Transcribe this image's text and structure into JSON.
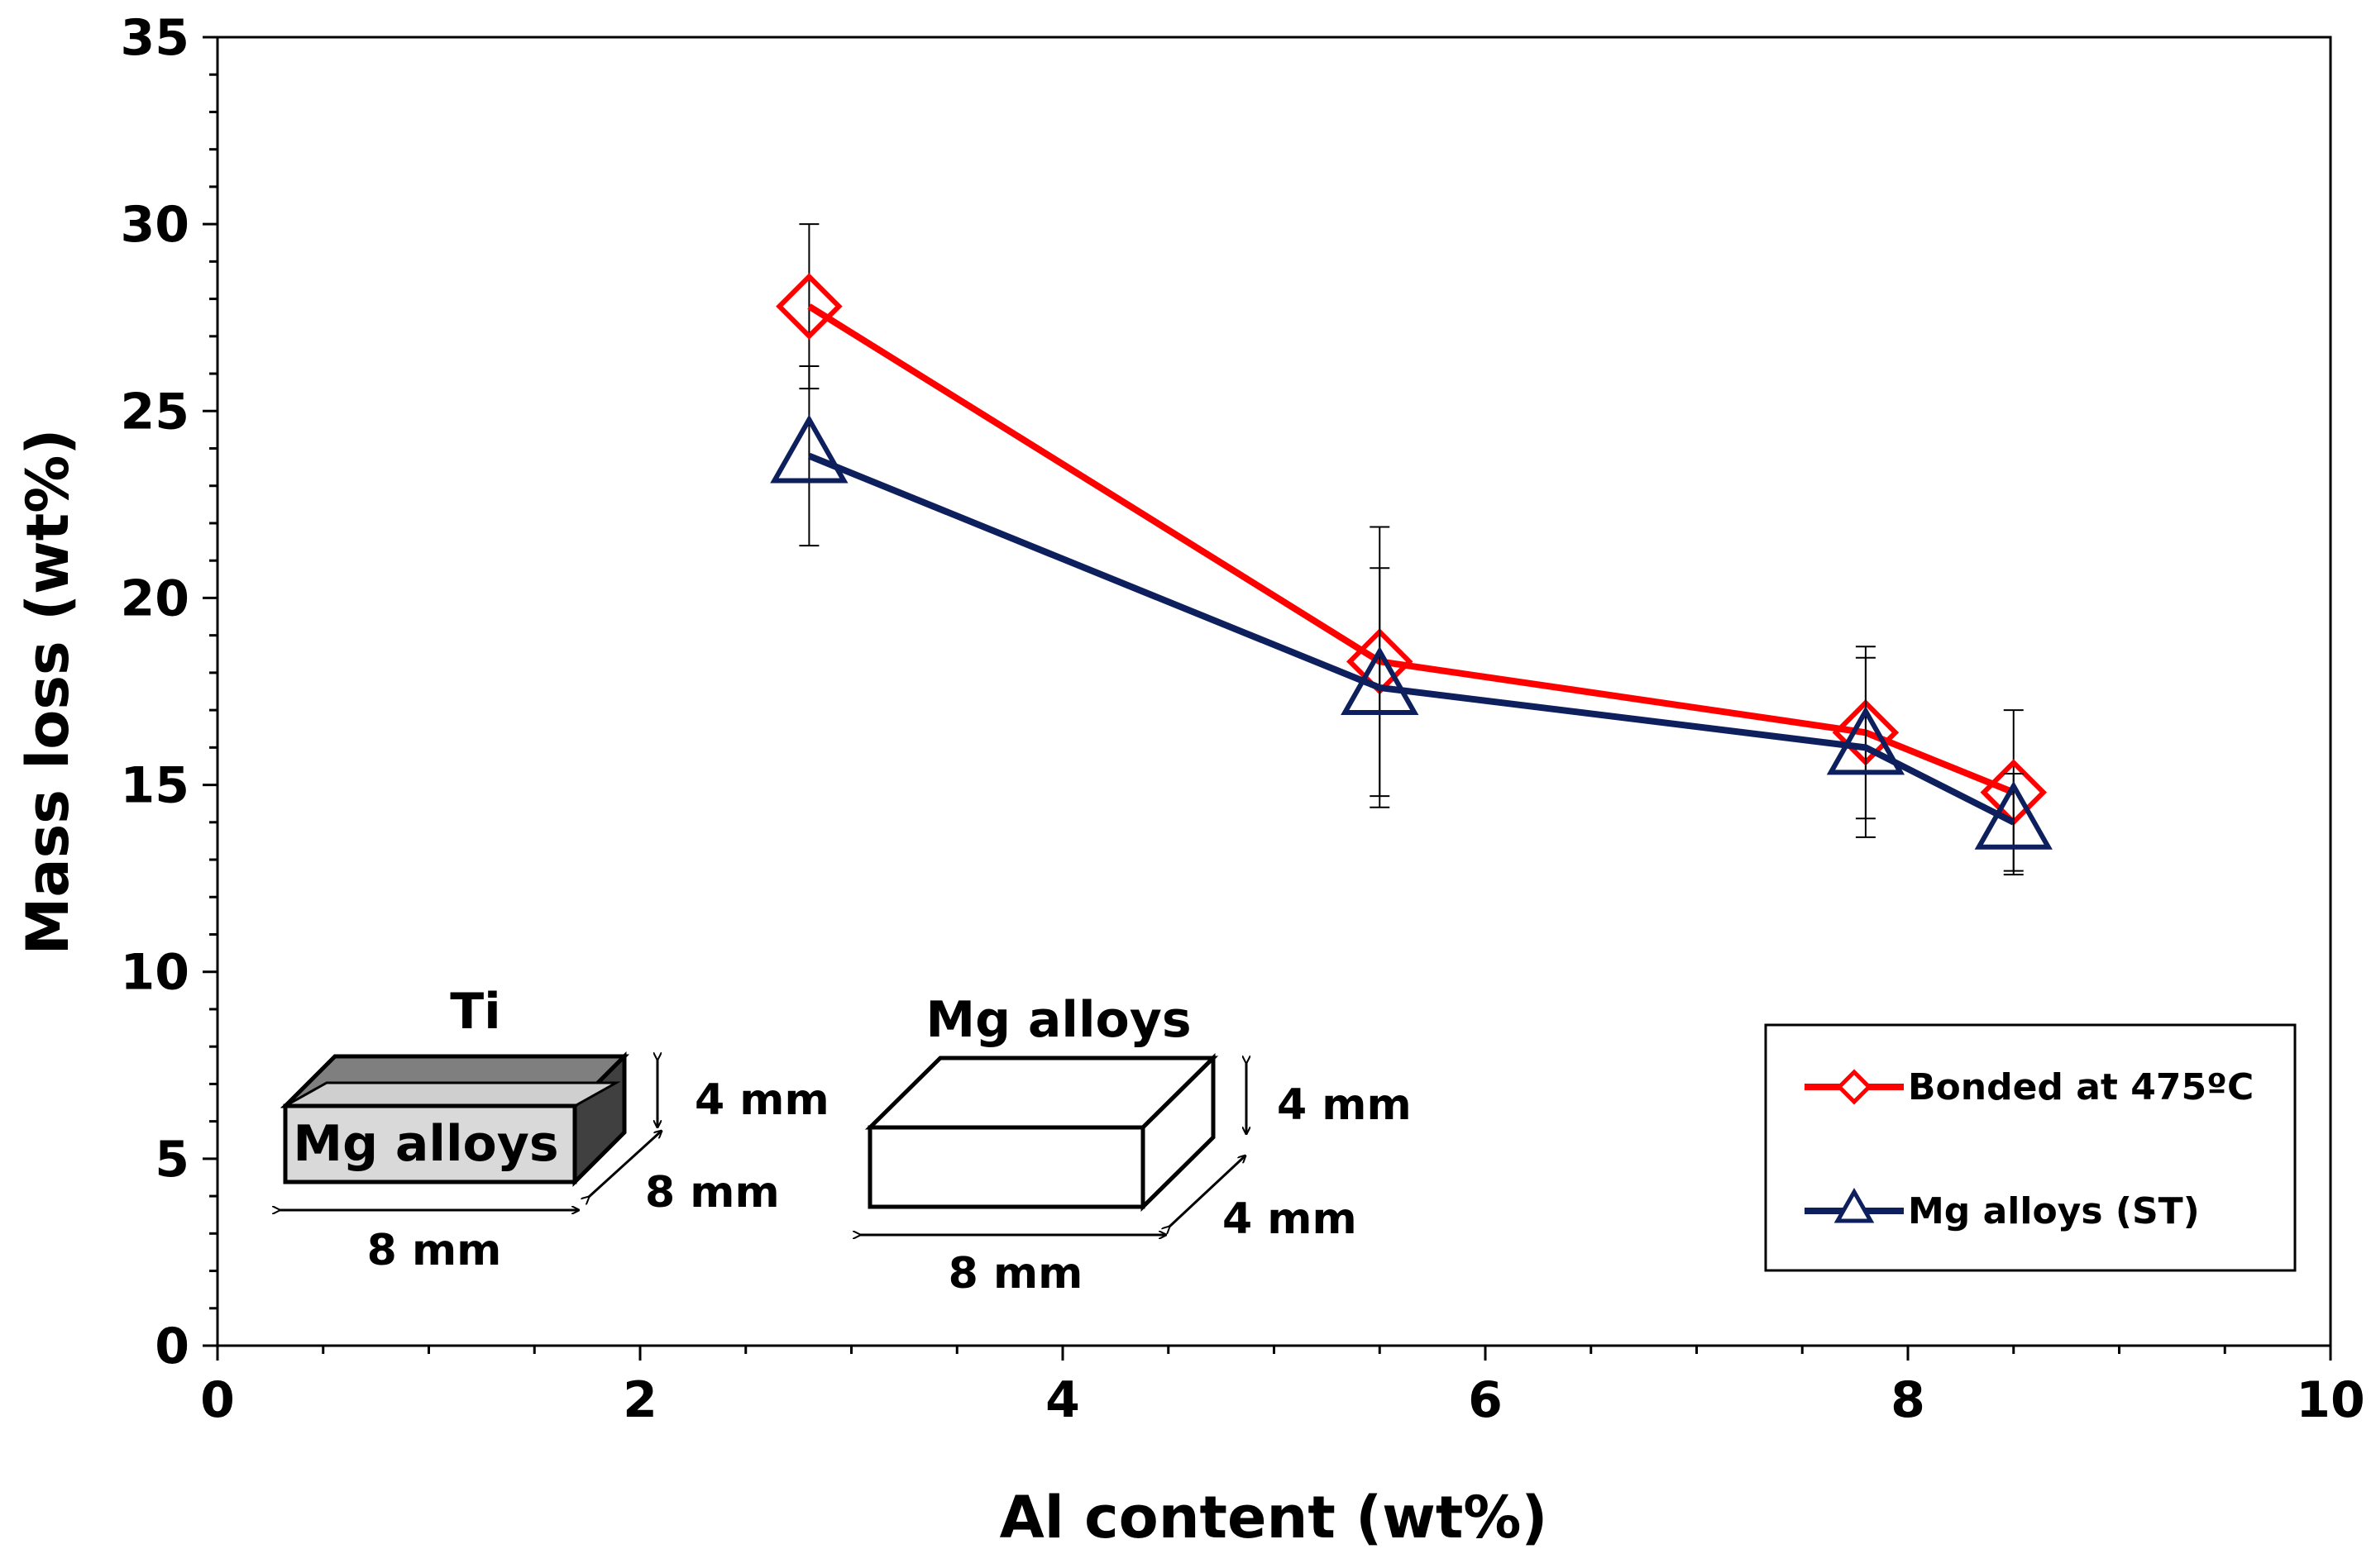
{
  "chart_data": {
    "type": "line",
    "xlabel": "Al content (wt%)",
    "ylabel": "Mass loss (wt%)",
    "xlim": [
      0,
      10
    ],
    "ylim": [
      0,
      35
    ],
    "x_ticks": [
      "0",
      "2",
      "4",
      "6",
      "8",
      "10"
    ],
    "y_ticks": [
      "0",
      "5",
      "10",
      "15",
      "20",
      "25",
      "30",
      "35"
    ],
    "grid": false,
    "legend_position": "bottom-right",
    "series": [
      {
        "name": "Bonded at 475ºC",
        "color": "#ff0000",
        "marker": "diamond",
        "x": [
          2.8,
          5.5,
          7.8,
          8.5
        ],
        "y": [
          27.8,
          18.3,
          16.4,
          14.8
        ],
        "err": [
          2.2,
          3.6,
          2.3,
          2.2
        ]
      },
      {
        "name": "Mg alloys (ST)",
        "color": "#0d1f5c",
        "marker": "triangle",
        "x": [
          2.8,
          5.5,
          7.8,
          8.5
        ],
        "y": [
          23.8,
          17.6,
          16.0,
          14.0
        ],
        "err": [
          2.4,
          3.2,
          2.4,
          1.3
        ]
      }
    ],
    "annotations": {
      "left_inset": {
        "top_label": "Ti",
        "block_label": "Mg alloys",
        "height_label": "4 mm",
        "depth_label": "8 mm",
        "width_label": "8 mm"
      },
      "right_inset": {
        "top_label": "Mg alloys",
        "height_label": "4 mm",
        "depth_label": "4 mm",
        "width_label": "8 mm"
      }
    }
  }
}
